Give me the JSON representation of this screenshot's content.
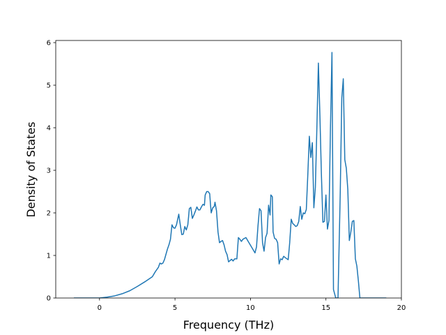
{
  "chart_data": {
    "type": "line",
    "title": "",
    "xlabel": "Frequency (THz)",
    "ylabel": "Density of States",
    "xlim": [
      -2.9,
      20.0
    ],
    "ylim": [
      0,
      6.05
    ],
    "x_ticks": [
      0,
      5,
      10,
      15,
      20
    ],
    "y_ticks": [
      0,
      1,
      2,
      3,
      4,
      5,
      6
    ],
    "grid": false,
    "legend": "none",
    "series": [
      {
        "color": "#1f77b4",
        "points": [
          [
            -1.7,
            0
          ],
          [
            -0.5,
            0
          ],
          [
            0,
            0
          ],
          [
            0.5,
            0.02
          ],
          [
            1.0,
            0.05
          ],
          [
            1.5,
            0.1
          ],
          [
            2.0,
            0.17
          ],
          [
            2.5,
            0.27
          ],
          [
            3.0,
            0.38
          ],
          [
            3.5,
            0.5
          ],
          [
            3.7,
            0.62
          ],
          [
            3.9,
            0.72
          ],
          [
            4.0,
            0.82
          ],
          [
            4.1,
            0.8
          ],
          [
            4.2,
            0.82
          ],
          [
            4.3,
            0.9
          ],
          [
            4.5,
            1.15
          ],
          [
            4.6,
            1.25
          ],
          [
            4.7,
            1.38
          ],
          [
            4.8,
            1.72
          ],
          [
            4.9,
            1.65
          ],
          [
            5.0,
            1.64
          ],
          [
            5.1,
            1.72
          ],
          [
            5.25,
            1.97
          ],
          [
            5.35,
            1.72
          ],
          [
            5.45,
            1.49
          ],
          [
            5.55,
            1.5
          ],
          [
            5.65,
            1.68
          ],
          [
            5.75,
            1.6
          ],
          [
            5.85,
            1.72
          ],
          [
            5.95,
            2.1
          ],
          [
            6.05,
            2.13
          ],
          [
            6.15,
            1.87
          ],
          [
            6.25,
            1.95
          ],
          [
            6.35,
            2.04
          ],
          [
            6.45,
            2.14
          ],
          [
            6.55,
            2.07
          ],
          [
            6.65,
            2.07
          ],
          [
            6.75,
            2.14
          ],
          [
            6.85,
            2.2
          ],
          [
            6.95,
            2.18
          ],
          [
            7.0,
            2.42
          ],
          [
            7.1,
            2.5
          ],
          [
            7.2,
            2.5
          ],
          [
            7.3,
            2.45
          ],
          [
            7.35,
            2.2
          ],
          [
            7.4,
            2.0
          ],
          [
            7.5,
            2.12
          ],
          [
            7.6,
            2.15
          ],
          [
            7.65,
            2.25
          ],
          [
            7.75,
            2.05
          ],
          [
            7.85,
            1.55
          ],
          [
            7.95,
            1.3
          ],
          [
            8.05,
            1.33
          ],
          [
            8.15,
            1.35
          ],
          [
            8.25,
            1.25
          ],
          [
            8.35,
            1.1
          ],
          [
            8.45,
            1.02
          ],
          [
            8.55,
            0.85
          ],
          [
            8.65,
            0.88
          ],
          [
            8.75,
            0.91
          ],
          [
            8.85,
            0.87
          ],
          [
            8.95,
            0.92
          ],
          [
            9.1,
            0.92
          ],
          [
            9.2,
            1.42
          ],
          [
            9.3,
            1.38
          ],
          [
            9.4,
            1.33
          ],
          [
            9.5,
            1.38
          ],
          [
            9.7,
            1.42
          ],
          [
            9.9,
            1.3
          ],
          [
            10.1,
            1.18
          ],
          [
            10.3,
            1.06
          ],
          [
            10.4,
            1.2
          ],
          [
            10.5,
            1.7
          ],
          [
            10.6,
            2.1
          ],
          [
            10.7,
            2.05
          ],
          [
            10.8,
            1.3
          ],
          [
            10.9,
            1.1
          ],
          [
            11.0,
            1.42
          ],
          [
            11.1,
            1.52
          ],
          [
            11.2,
            2.18
          ],
          [
            11.3,
            1.95
          ],
          [
            11.35,
            2.42
          ],
          [
            11.45,
            2.38
          ],
          [
            11.5,
            1.55
          ],
          [
            11.6,
            1.4
          ],
          [
            11.7,
            1.38
          ],
          [
            11.8,
            1.3
          ],
          [
            11.9,
            0.8
          ],
          [
            12.0,
            0.92
          ],
          [
            12.1,
            0.9
          ],
          [
            12.2,
            0.98
          ],
          [
            12.3,
            0.95
          ],
          [
            12.5,
            0.9
          ],
          [
            12.6,
            1.3
          ],
          [
            12.7,
            1.85
          ],
          [
            12.8,
            1.75
          ],
          [
            12.9,
            1.72
          ],
          [
            13.0,
            1.68
          ],
          [
            13.1,
            1.7
          ],
          [
            13.2,
            1.8
          ],
          [
            13.3,
            2.15
          ],
          [
            13.4,
            1.85
          ],
          [
            13.5,
            2.0
          ],
          [
            13.6,
            1.98
          ],
          [
            13.7,
            2.08
          ],
          [
            13.8,
            2.9
          ],
          [
            13.9,
            3.8
          ],
          [
            14.0,
            3.3
          ],
          [
            14.1,
            3.65
          ],
          [
            14.2,
            2.12
          ],
          [
            14.3,
            2.6
          ],
          [
            14.4,
            4.0
          ],
          [
            14.5,
            5.52
          ],
          [
            14.6,
            4.3
          ],
          [
            14.7,
            2.9
          ],
          [
            14.8,
            1.78
          ],
          [
            14.9,
            1.8
          ],
          [
            15.0,
            2.42
          ],
          [
            15.1,
            1.62
          ],
          [
            15.2,
            1.82
          ],
          [
            15.3,
            4.0
          ],
          [
            15.4,
            5.77
          ],
          [
            15.5,
            0.2
          ],
          [
            15.65,
            0.0
          ],
          [
            15.8,
            0.0
          ],
          [
            15.95,
            2.5
          ],
          [
            16.05,
            4.7
          ],
          [
            16.15,
            5.15
          ],
          [
            16.25,
            3.25
          ],
          [
            16.35,
            3.05
          ],
          [
            16.45,
            2.55
          ],
          [
            16.55,
            1.35
          ],
          [
            16.65,
            1.55
          ],
          [
            16.75,
            1.8
          ],
          [
            16.85,
            1.82
          ],
          [
            16.95,
            0.92
          ],
          [
            17.05,
            0.75
          ],
          [
            17.15,
            0.4
          ],
          [
            17.25,
            0.0
          ],
          [
            18.0,
            0.0
          ],
          [
            19.0,
            0.0
          ]
        ]
      }
    ]
  }
}
